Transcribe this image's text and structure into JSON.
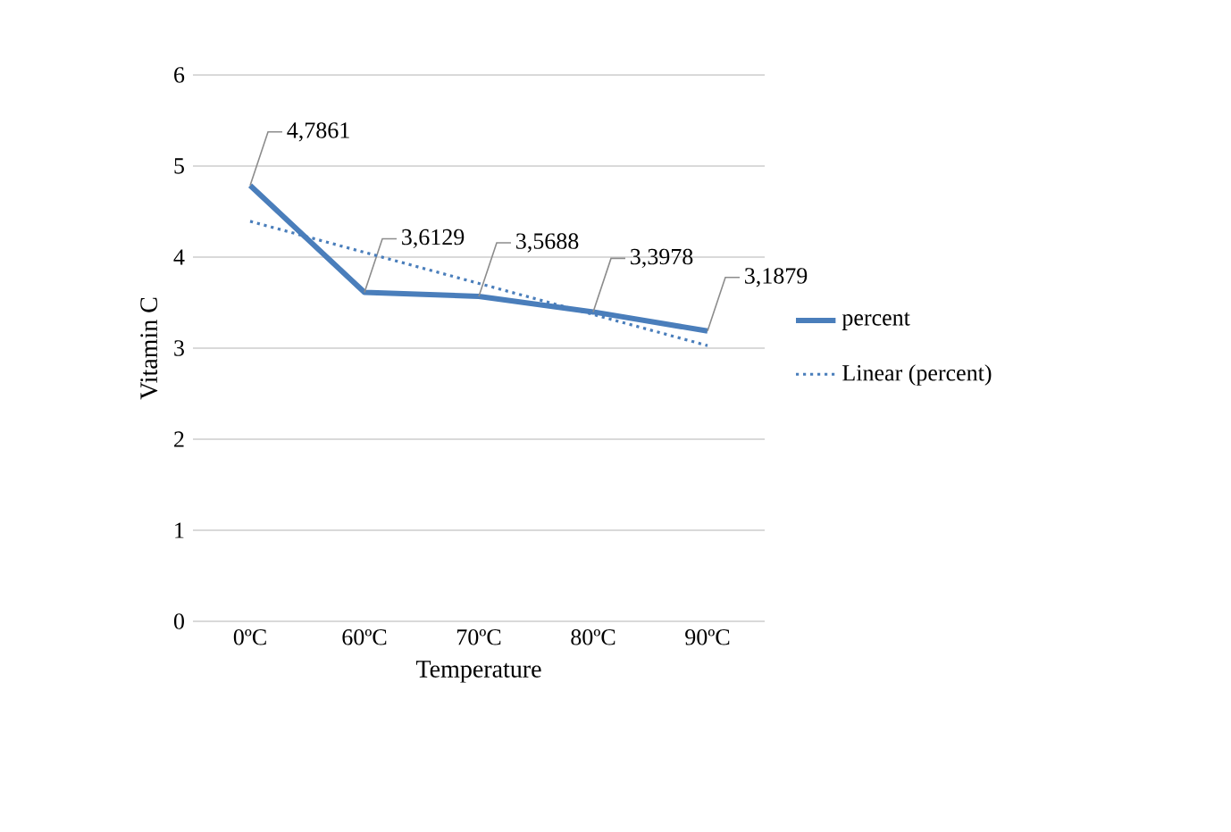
{
  "chart_data": {
    "type": "line",
    "xlabel": "Temperature",
    "ylabel": "Vitamin C",
    "categories": [
      "0ºC",
      "60ºC",
      "70ºC",
      "80ºC",
      "90ºC"
    ],
    "series": [
      {
        "name": "percent",
        "color": "#4a7ebb",
        "values": [
          4.7861,
          3.6129,
          3.5688,
          3.3978,
          3.1879
        ],
        "value_labels": [
          "4,7861",
          "3,6129",
          "3,5688",
          "3,3978",
          "3,1879"
        ],
        "line_style": "solid"
      },
      {
        "name": "Linear (percent)",
        "color": "#4a7ebb",
        "values": [
          4.393,
          4.052,
          3.711,
          3.37,
          3.028
        ],
        "line_style": "dotted"
      }
    ],
    "ylim": [
      0,
      6
    ],
    "yticks": [
      0,
      1,
      2,
      3,
      4,
      5,
      6
    ],
    "grid": "y",
    "legend": "right",
    "marker": "none"
  }
}
